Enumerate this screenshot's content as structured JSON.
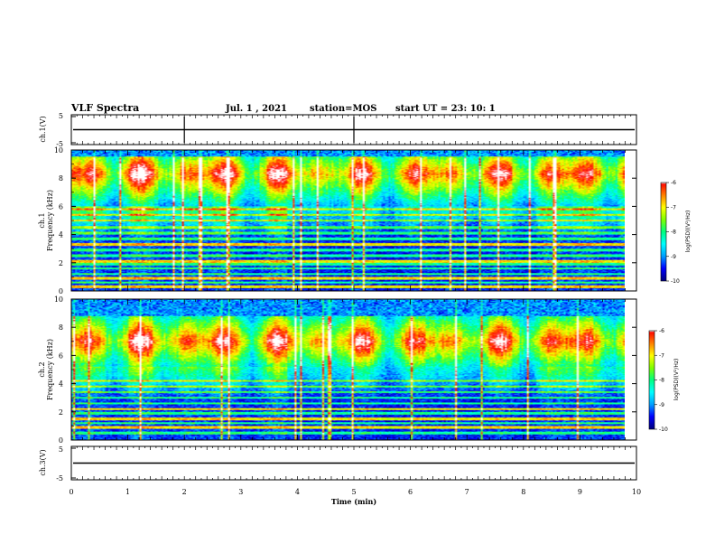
{
  "header": {
    "title": "VLF Spectra",
    "date": "Jul.  1 , 2021",
    "station": "station=MOS",
    "start_ut": "start  UT =   23: 10: 1"
  },
  "colors": {
    "colormap": [
      "#000080",
      "#0000ff",
      "#00a0ff",
      "#00ffff",
      "#00ff80",
      "#80ff00",
      "#ffff00",
      "#ff8000",
      "#ff0000",
      "#ffffff"
    ],
    "axis": "#000000",
    "trace": "#000000"
  },
  "chart_data": {
    "type": "heatmap",
    "x_axis": {
      "label": "Time  (min)",
      "range": [
        0,
        10
      ],
      "ticks": [
        "0",
        "1",
        "2",
        "3",
        "4",
        "5",
        "6",
        "7",
        "8",
        "9",
        "10"
      ]
    },
    "panels": [
      {
        "id": "ch1-waveform",
        "type": "line",
        "ylabel": "ch.1(V)",
        "ylim": [
          -5,
          5
        ],
        "yticks": [
          "5",
          "-5"
        ],
        "trace_level": 0,
        "spike_times_min": [
          2.0,
          5.0
        ]
      },
      {
        "id": "ch1-spectrogram",
        "type": "heatmap",
        "ylabel_line1": "ch.1",
        "ylabel_line2": "Frequency  (kHz)",
        "ylim": [
          0,
          10
        ],
        "yticks": [
          "0",
          "2",
          "4",
          "6",
          "8",
          "10"
        ],
        "high_band_khz": [
          6.0,
          9.5
        ],
        "peak_khz": 8.3,
        "lines_khz": [
          0.3,
          0.6,
          0.9,
          1.2,
          1.6,
          1.9,
          2.1,
          2.5,
          2.9,
          3.3,
          3.7,
          4.1,
          4.5,
          5.0,
          5.4,
          5.8
        ],
        "bright_lines_khz": [
          0.3,
          0.9,
          2.1,
          3.3
        ],
        "quiet_interval_min": [
          3.9,
          8.4
        ],
        "colorbar": {
          "label": "log(PSD)(V²/Hz)",
          "range": [
            -10,
            -6
          ],
          "ticks": [
            "-6",
            "-7",
            "-8",
            "-9",
            "-10"
          ]
        }
      },
      {
        "id": "ch2-spectrogram",
        "type": "heatmap",
        "ylabel_line1": "ch.2",
        "ylabel_line2": "Frequency  (kHz)",
        "ylim": [
          0,
          10
        ],
        "yticks": [
          "0",
          "2",
          "4",
          "6",
          "8",
          "10"
        ],
        "high_band_khz": [
          5.2,
          8.8
        ],
        "peak_khz": 7.0,
        "lines_khz": [
          0.5,
          0.9,
          1.2,
          1.5,
          1.9,
          2.2,
          2.6,
          3.0,
          3.4,
          3.8,
          4.2
        ],
        "bright_lines_khz": [
          0.9,
          1.5,
          2.2
        ],
        "quiet_interval_min": [
          3.9,
          8.4
        ],
        "colorbar": {
          "label": "log(PSD)(V²/Hz)",
          "range": [
            -10,
            -6
          ],
          "ticks": [
            "-6",
            "-7",
            "-8",
            "-9",
            "-10"
          ]
        }
      },
      {
        "id": "ch3-waveform",
        "type": "line",
        "ylabel": "ch.3(V)",
        "ylim": [
          -5,
          5
        ],
        "yticks": [
          "5",
          "-5"
        ],
        "trace_level": 0,
        "spike_times_min": []
      }
    ]
  }
}
